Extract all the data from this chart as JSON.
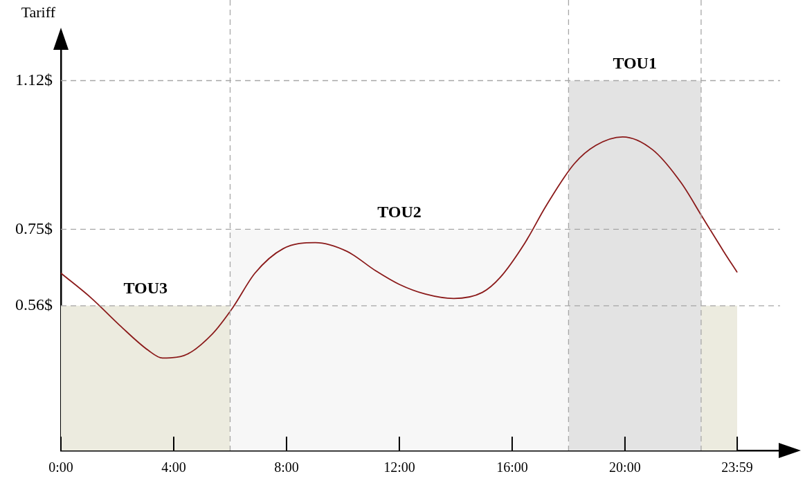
{
  "chart_data": {
    "type": "line",
    "ylabel": "Tariff",
    "xlim": [
      0,
      25.5
    ],
    "ylim": [
      0.2,
      1.2
    ],
    "xticks": [
      {
        "value": 0,
        "label": "0:00"
      },
      {
        "value": 4,
        "label": "4:00"
      },
      {
        "value": 8,
        "label": "8:00"
      },
      {
        "value": 12,
        "label": "12:00"
      },
      {
        "value": 16,
        "label": "16:00"
      },
      {
        "value": 20,
        "label": "20:00"
      },
      {
        "value": 23.98,
        "label": "23:59"
      }
    ],
    "yticks": [
      {
        "value": 0.56,
        "label": "0.56$"
      },
      {
        "value": 0.75,
        "label": "0.75$"
      },
      {
        "value": 1.12,
        "label": "1.12$"
      }
    ],
    "grid": "y",
    "legend": false,
    "marker": "none",
    "line_style": "solid",
    "series": [
      {
        "type": "area",
        "name": "TOU3",
        "color": "#ecebdf",
        "x": [
          0,
          6
        ],
        "values": [
          0.56,
          0.56
        ]
      },
      {
        "type": "area",
        "name": "TOU2",
        "color": "#f7f7f7",
        "x": [
          6,
          18
        ],
        "values": [
          0.75,
          0.75
        ]
      },
      {
        "type": "area",
        "name": "TOU1",
        "color": "#e3e3e3",
        "x": [
          18,
          22.7
        ],
        "values": [
          1.12,
          1.12
        ]
      },
      {
        "type": "area",
        "color": "#ecebdf",
        "x": [
          22.7,
          23.98
        ],
        "values": [
          0.56,
          0.56
        ]
      },
      {
        "color": "#8b1a1a",
        "x": [
          0,
          1.08,
          2.09,
          3.1,
          3.6,
          4.36,
          5.37,
          6.1,
          6.88,
          7.88,
          9.02,
          10.15,
          11.16,
          12,
          12.92,
          13.93,
          14.94,
          15.57,
          16.45,
          17.2,
          18.2,
          18.97,
          19.92,
          20.98,
          21.99,
          22.75,
          23.5,
          23.98
        ],
        "values": [
          0.641,
          0.579,
          0.511,
          0.449,
          0.43,
          0.436,
          0.49,
          0.556,
          0.641,
          0.702,
          0.717,
          0.695,
          0.647,
          0.613,
          0.589,
          0.578,
          0.593,
          0.63,
          0.716,
          0.808,
          0.913,
          0.959,
          0.98,
          0.948,
          0.866,
          0.78,
          0.695,
          0.643
        ]
      }
    ],
    "ref_lines": [
      {
        "axis": "x",
        "value": 6,
        "line_style": "dashed"
      },
      {
        "axis": "x",
        "value": 18,
        "line_style": "dashed"
      },
      {
        "axis": "x",
        "value": 22.7,
        "line_style": "dashed"
      }
    ]
  }
}
